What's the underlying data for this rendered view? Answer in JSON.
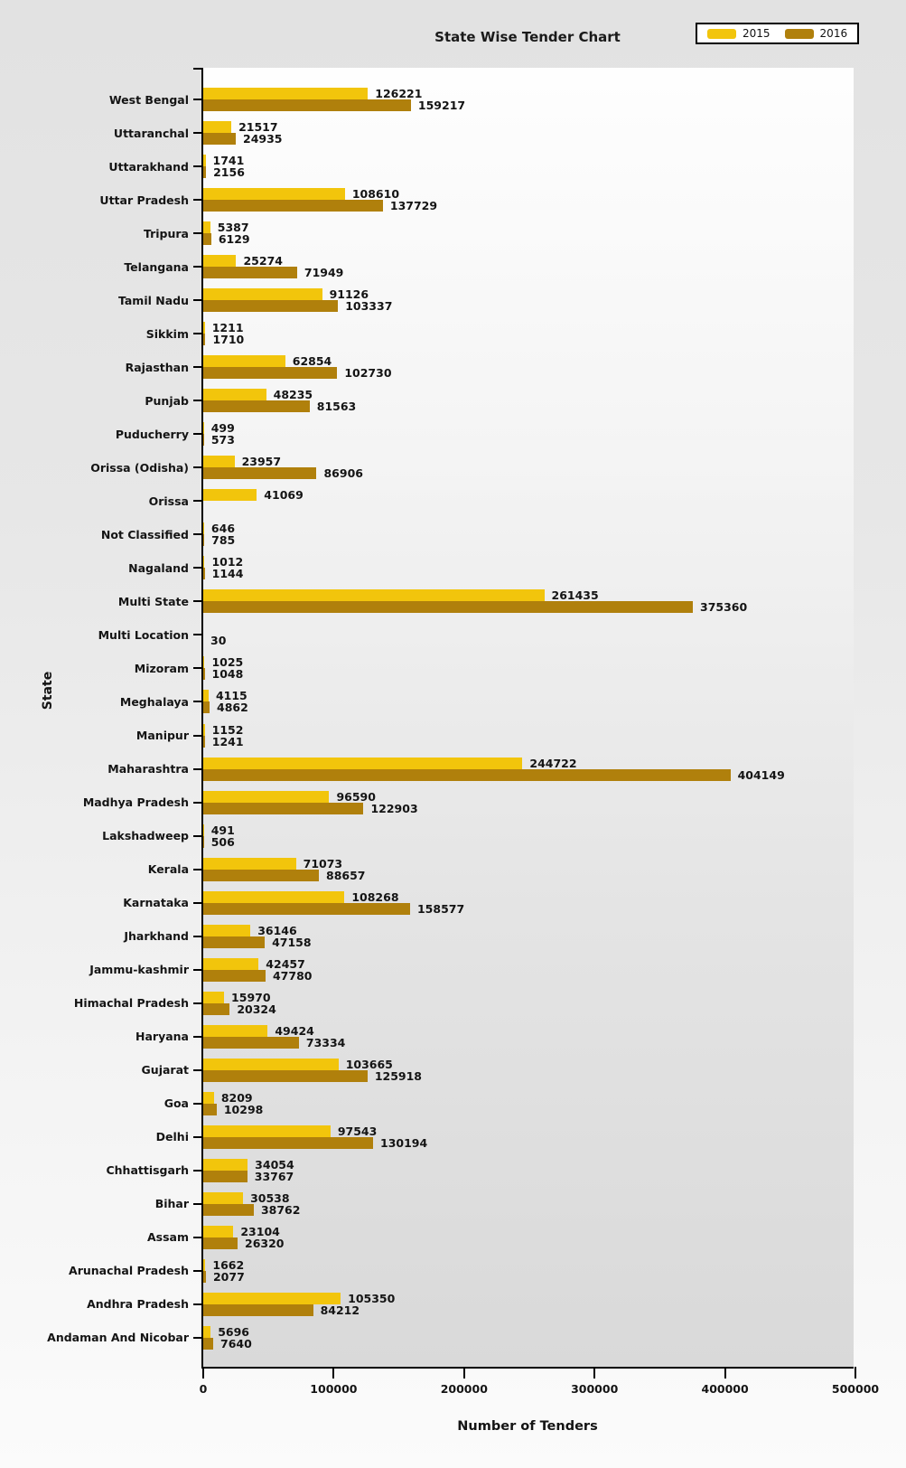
{
  "chart_data": {
    "type": "bar",
    "orientation": "horizontal",
    "title": "State Wise Tender Chart",
    "xlabel": "Number of Tenders",
    "ylabel": "State",
    "xlim": [
      0,
      500000
    ],
    "x_ticks": [
      0,
      100000,
      200000,
      300000,
      400000,
      500000
    ],
    "grid": false,
    "legend_position": "top-right",
    "legend": [
      "2015",
      "2016"
    ],
    "categories": [
      "West Bengal",
      "Uttaranchal",
      "Uttarakhand",
      "Uttar Pradesh",
      "Tripura",
      "Telangana",
      "Tamil Nadu",
      "Sikkim",
      "Rajasthan",
      "Punjab",
      "Puducherry",
      "Orissa (Odisha)",
      "Orissa",
      "Not Classified",
      "Nagaland",
      "Multi State",
      "Multi Location",
      "Mizoram",
      "Meghalaya",
      "Manipur",
      "Maharashtra",
      "Madhya Pradesh",
      "Lakshadweep",
      "Kerala",
      "Karnataka",
      "Jharkhand",
      "Jammu-kashmir",
      "Himachal Pradesh",
      "Haryana",
      "Gujarat",
      "Goa",
      "Delhi",
      "Chhattisgarh",
      "Bihar",
      "Assam",
      "Arunachal Pradesh",
      "Andhra Pradesh",
      "Andaman And Nicobar"
    ],
    "series": [
      {
        "name": "2015",
        "color": "#F2C50C",
        "values": [
          126221,
          21517,
          1741,
          108610,
          5387,
          25274,
          91126,
          1211,
          62854,
          48235,
          499,
          23957,
          41069,
          646,
          1012,
          261435,
          null,
          1025,
          4115,
          1152,
          244722,
          96590,
          491,
          71073,
          108268,
          36146,
          42457,
          15970,
          49424,
          103665,
          8209,
          97543,
          34054,
          30538,
          23104,
          1662,
          105350,
          5696
        ]
      },
      {
        "name": "2016",
        "color": "#B0800C",
        "values": [
          159217,
          24935,
          2156,
          137729,
          6129,
          71949,
          103337,
          1710,
          102730,
          81563,
          573,
          86906,
          null,
          785,
          1144,
          375360,
          30,
          1048,
          4862,
          1241,
          404149,
          122903,
          506,
          88657,
          158577,
          47158,
          47780,
          20324,
          73334,
          125918,
          10298,
          130194,
          33767,
          38762,
          26320,
          2077,
          84212,
          7640
        ]
      }
    ]
  }
}
